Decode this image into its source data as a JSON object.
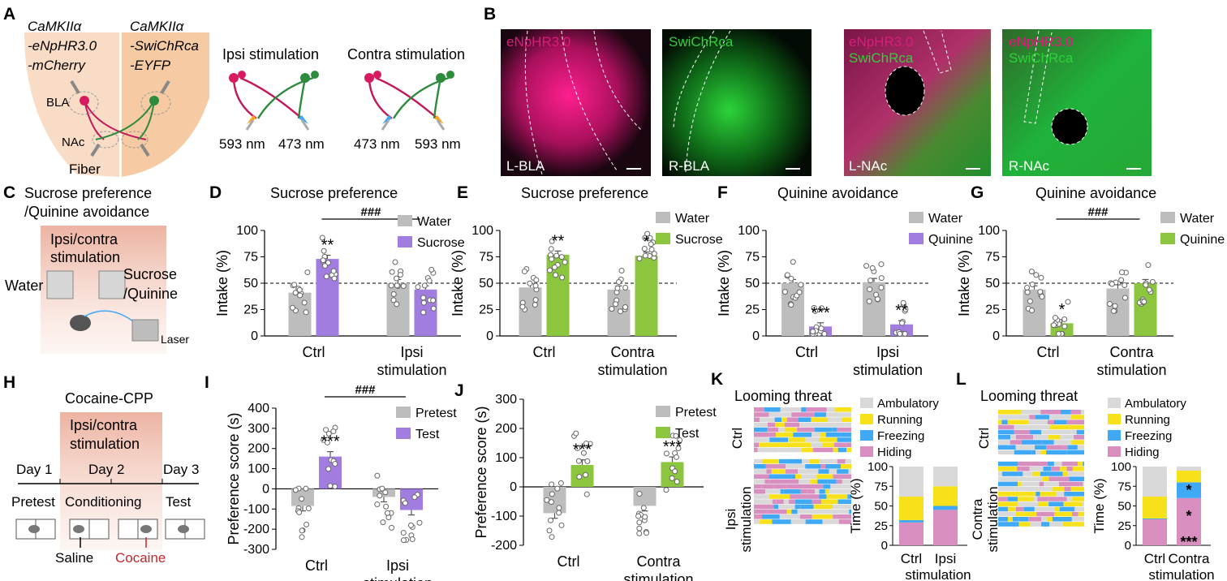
{
  "colors": {
    "purple": "#a27de0",
    "green": "#8cc63f",
    "gray": "#bdbdbd",
    "magenta": "#e0197d",
    "brightgreen": "#2fd13a",
    "ambulatory": "#d9d9d9",
    "running": "#f7e11b",
    "freezing": "#3fa9f5",
    "hiding": "#d98ec0",
    "red": "#c1272d"
  },
  "panelA": {
    "letter": "A",
    "construct_left": [
      "CaMKIIα",
      "-eNpHR3.0",
      "-mCherry"
    ],
    "construct_right": [
      "CaMKIIα",
      "-SwiChRca",
      "-EYFP"
    ],
    "bla": "BLA",
    "nac": "NAc",
    "fiber": "Fiber",
    "ipsi_title": "Ipsi stimulation",
    "contra_title": "Contra stimulation",
    "ipsi_wl": [
      "593 nm",
      "473 nm"
    ],
    "contra_wl": [
      "473 nm",
      "593 nm"
    ]
  },
  "panelB": {
    "letter": "B",
    "images": [
      {
        "tag1": "eNpHR3.0",
        "tag2": "",
        "region": "L-BLA"
      },
      {
        "tag1": "",
        "tag2": "SwiChRca",
        "region": "R-BLA"
      },
      {
        "tag1": "eNpHR3.0",
        "tag2": "SwiChRca",
        "region": "L-NAc"
      },
      {
        "tag1": "eNpHR3.0",
        "tag2": "SwiChRca",
        "region": "R-NAc"
      }
    ]
  },
  "panelC": {
    "letter": "C",
    "title": [
      "Sucrose preference",
      "/Quinine avoidance"
    ],
    "stim": [
      "Ipsi/contra",
      "stimulation"
    ],
    "water": "Water",
    "sucrose": [
      "Sucrose",
      "/Quinine"
    ],
    "laser": "Laser"
  },
  "panelH": {
    "letter": "H",
    "title": "Cocaine-CPP",
    "stim": [
      "Ipsi/contra",
      "stimulation"
    ],
    "days": [
      "Day 1",
      "Day 2",
      "Day 3"
    ],
    "phases": [
      "Pretest",
      "Conditioning",
      "Test"
    ],
    "saline": "Saline",
    "cocaine": "Cocaine"
  },
  "chart_data": [
    {
      "panel": "D",
      "type": "bar",
      "title": "Sucrose preference",
      "ylabel": "Intake (%)",
      "ylim": [
        0,
        100
      ],
      "yticks": [
        0,
        25,
        50,
        75,
        100
      ],
      "refline": 50,
      "categories": [
        "Ctrl",
        "Ipsi stimulation"
      ],
      "catlabels": [
        [
          "Ctrl"
        ],
        [
          "Ipsi",
          "stimulation"
        ]
      ],
      "series": [
        {
          "name": "Water",
          "color": "gray",
          "values": [
            41,
            50
          ]
        },
        {
          "name": "Sucrose",
          "color": "purple",
          "values": [
            73,
            44
          ]
        }
      ],
      "stars": [
        {
          "cat": 0,
          "ser": 1,
          "text": "**"
        }
      ],
      "hash": {
        "text": "###",
        "from": 0,
        "to": 1
      }
    },
    {
      "panel": "E",
      "type": "bar",
      "title": "Sucrose preference",
      "ylabel": "Intake (%)",
      "ylim": [
        0,
        100
      ],
      "yticks": [
        0,
        25,
        50,
        75,
        100
      ],
      "refline": 50,
      "categories": [
        "Ctrl",
        "Contra stimulation"
      ],
      "catlabels": [
        [
          "Ctrl"
        ],
        [
          "Contra",
          "stimulation"
        ]
      ],
      "series": [
        {
          "name": "Water",
          "color": "gray",
          "values": [
            46,
            44
          ]
        },
        {
          "name": "Sucrose",
          "color": "green",
          "values": [
            77,
            76
          ]
        }
      ],
      "stars": [
        {
          "cat": 0,
          "ser": 1,
          "text": "**"
        },
        {
          "cat": 1,
          "ser": 1,
          "text": "*"
        }
      ]
    },
    {
      "panel": "F",
      "type": "bar",
      "title": "Quinine avoidance",
      "ylabel": "Intake (%)",
      "ylim": [
        0,
        100
      ],
      "yticks": [
        0,
        25,
        50,
        75,
        100
      ],
      "refline": 50,
      "categories": [
        "Ctrl",
        "Ipsi stimulation"
      ],
      "catlabels": [
        [
          "Ctrl"
        ],
        [
          "Ipsi",
          "stimulation"
        ]
      ],
      "series": [
        {
          "name": "Water",
          "color": "gray",
          "values": [
            50,
            51
          ]
        },
        {
          "name": "Quinine",
          "color": "purple",
          "values": [
            9,
            11
          ]
        }
      ],
      "stars": [
        {
          "cat": 0,
          "ser": 1,
          "text": "***"
        },
        {
          "cat": 1,
          "ser": 1,
          "text": "**"
        }
      ]
    },
    {
      "panel": "G",
      "type": "bar",
      "title": "Quinine avoidance",
      "ylabel": "Intake (%)",
      "ylim": [
        0,
        100
      ],
      "yticks": [
        0,
        25,
        50,
        75,
        100
      ],
      "refline": 50,
      "categories": [
        "Ctrl",
        "Contra stimulation"
      ],
      "catlabels": [
        [
          "Ctrl"
        ],
        [
          "Contra",
          "stimulation"
        ]
      ],
      "series": [
        {
          "name": "Water",
          "color": "gray",
          "values": [
            44,
            45
          ]
        },
        {
          "name": "Quinine",
          "color": "green",
          "values": [
            12,
            50
          ]
        }
      ],
      "stars": [
        {
          "cat": 0,
          "ser": 1,
          "text": "*"
        }
      ],
      "hash": {
        "text": "###",
        "from": 0,
        "to": 1
      }
    },
    {
      "panel": "I",
      "type": "bar",
      "ylabel": "Preference score (s)",
      "ylim": [
        -300,
        400
      ],
      "yticks": [
        -300,
        -200,
        -100,
        0,
        100,
        200,
        300,
        400
      ],
      "categories": [
        "Ctrl",
        "Ipsi stimulation"
      ],
      "catlabels": [
        [
          "Ctrl"
        ],
        [
          "Ipsi",
          "stimulation"
        ]
      ],
      "series": [
        {
          "name": "Pretest",
          "color": "gray",
          "values": [
            -85,
            -40
          ]
        },
        {
          "name": "Test",
          "color": "purple",
          "values": [
            160,
            -105
          ]
        }
      ],
      "stars": [
        {
          "cat": 0,
          "ser": 1,
          "text": "***"
        }
      ],
      "hash": {
        "text": "###",
        "from": 0,
        "to": 1
      }
    },
    {
      "panel": "J",
      "type": "bar",
      "ylabel": "Preference score (s)",
      "ylim": [
        -200,
        300
      ],
      "yticks": [
        -200,
        -100,
        0,
        100,
        200,
        300
      ],
      "categories": [
        "Ctrl",
        "Contra stimulation"
      ],
      "catlabels": [
        [
          "Ctrl"
        ],
        [
          "Contra",
          "stimulation"
        ]
      ],
      "series": [
        {
          "name": "Pretest",
          "color": "gray",
          "values": [
            -90,
            -65
          ]
        },
        {
          "name": "Test",
          "color": "green",
          "values": [
            75,
            85
          ]
        }
      ],
      "stars": [
        {
          "cat": 0,
          "ser": 1,
          "text": "***"
        },
        {
          "cat": 1,
          "ser": 1,
          "text": "***"
        }
      ]
    },
    {
      "panel": "K",
      "type": "bar",
      "title": "Looming threat",
      "ylabel": "Time (%)",
      "ylim": [
        0,
        100
      ],
      "yticks": [
        0,
        25,
        50,
        75,
        100
      ],
      "rows": [
        "Ctrl",
        [
          "Ipsi",
          "stimulation"
        ]
      ],
      "categories": [
        "Ctrl",
        "Ipsi"
      ],
      "xlabel_extra": "stimulation",
      "legend": [
        "Ambulatory",
        "Running",
        "Freezing",
        "Hiding"
      ],
      "stacks": [
        [
          38,
          30,
          3,
          29
        ],
        [
          25,
          25,
          5,
          45
        ]
      ],
      "stars": []
    },
    {
      "panel": "L",
      "type": "bar",
      "title": "Looming threat",
      "ylabel": "Time (%)",
      "ylim": [
        0,
        100
      ],
      "yticks": [
        0,
        25,
        50,
        75,
        100
      ],
      "rows": [
        "Ctrl",
        [
          "Contra",
          "stimulation"
        ]
      ],
      "categories": [
        "Ctrl",
        "Contra"
      ],
      "xlabel_extra": "stimulation",
      "legend": [
        "Ambulatory",
        "Running",
        "Freezing",
        "Hiding"
      ],
      "stacks": [
        [
          38,
          28,
          1,
          33
        ],
        [
          5,
          15,
          20,
          60
        ]
      ],
      "stars": [
        "***",
        "*",
        "*"
      ]
    }
  ]
}
